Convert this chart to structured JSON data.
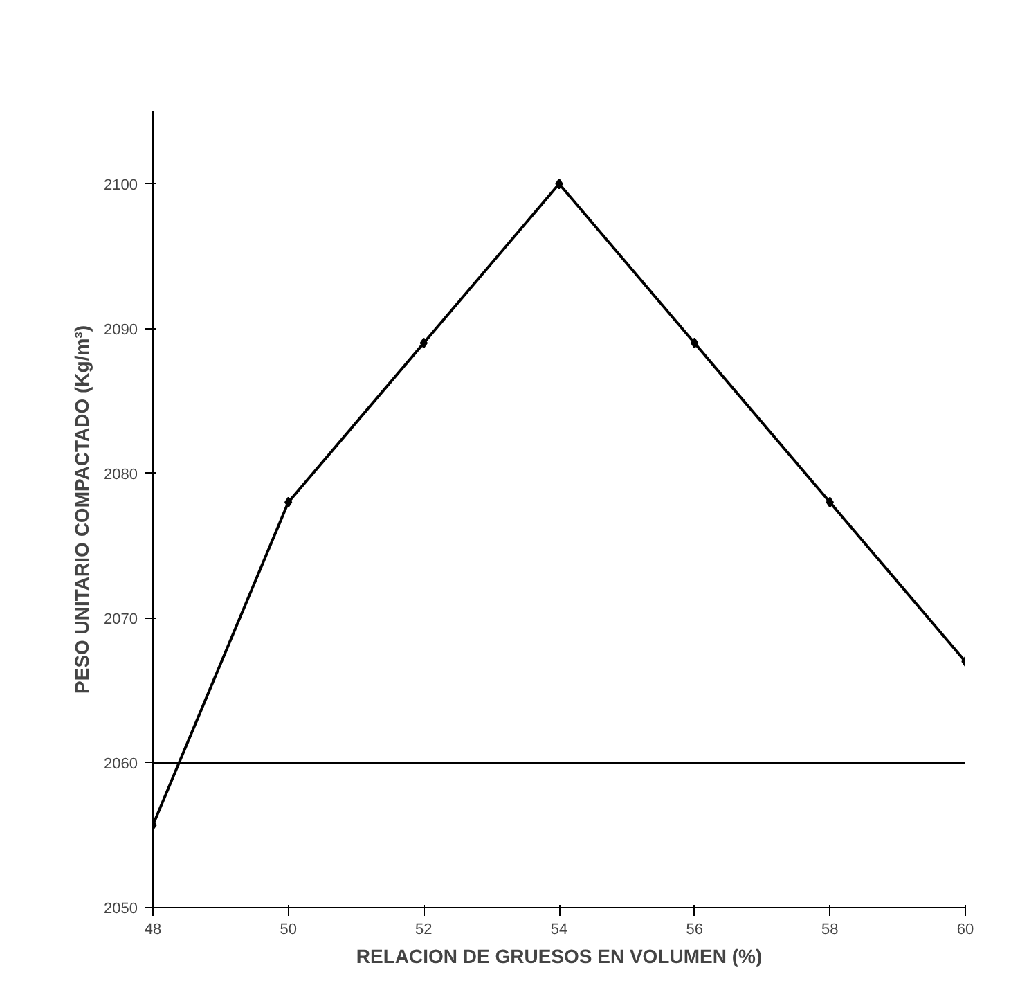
{
  "chart_data": {
    "type": "line",
    "xlabel": "RELACION DE GRUESOS EN VOLUMEN (%)",
    "ylabel": "PESO UNITARIO COMPACTADO (Kg/m³)",
    "x": [
      48,
      50,
      52,
      54,
      56,
      58,
      60
    ],
    "series": [
      {
        "color": "#000000",
        "values": [
          2055.7,
          2078,
          2089,
          2100,
          2089,
          2078,
          2067
        ]
      }
    ],
    "xlim": [
      48,
      60
    ],
    "xticks": [
      48,
      50,
      52,
      54,
      56,
      58,
      60
    ],
    "ylim": [
      2050,
      2105
    ],
    "yticks": [
      2050,
      2060,
      2070,
      2080,
      2090,
      2100
    ],
    "ref_lines": [
      {
        "axis": "y",
        "value": 2060,
        "color": "#000000"
      }
    ],
    "marker": "diamond",
    "line_style": "solid",
    "grid": false
  }
}
